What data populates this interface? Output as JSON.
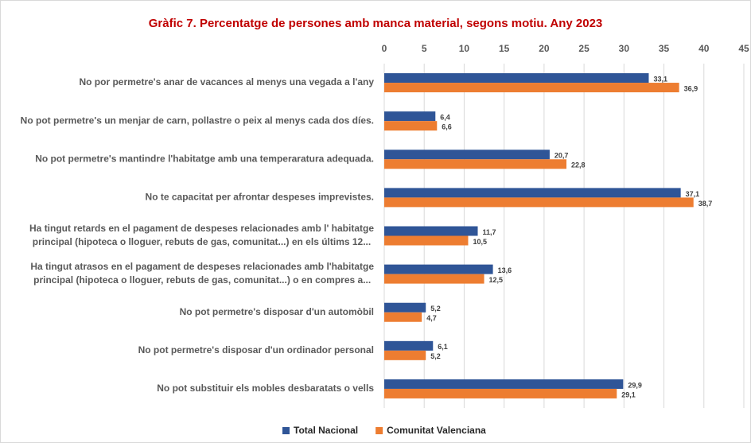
{
  "chart_data": {
    "type": "bar",
    "orientation": "horizontal",
    "title": "Gràfic 7. Percentatge de persones amb manca material, segons motiu. Any 2023",
    "categories": [
      "No por permetre's anar de vacances al menys una vegada a l'any",
      "No pot permetre's un menjar de carn, pollastre o peix al menys cada dos díes.",
      "No pot permetre's mantindre l'habitatge amb una temperaratura adequada.",
      "No te capacitat per afrontar despeses imprevistes.",
      "Ha tingut retards en el pagament de despeses relacionades amb l' habitatge principal (hipoteca o lloguer, rebuts de gas, comunitat...) en els últims 12...",
      "Ha tingut atrasos en el pagament de despeses relacionades amb l'habitatge principal (hipoteca o lloguer, rebuts de gas, comunitat...) o en compres a...",
      "No pot permetre's disposar d'un automòbil",
      "No pot permetre's disposar d'un ordinador personal",
      "No pot substituir els mobles desbaratats o vells"
    ],
    "series": [
      {
        "name": "Total Nacional",
        "color": "#2f5597",
        "values": [
          33.1,
          6.4,
          20.7,
          37.1,
          11.7,
          13.6,
          5.2,
          6.1,
          29.9
        ],
        "value_labels": [
          "33,1",
          "6,4",
          "20,7",
          "37,1",
          "11,7",
          "13,6",
          "5,2",
          "6,1",
          "29,9"
        ]
      },
      {
        "name": "Comunitat Valenciana",
        "color": "#ed7d31",
        "values": [
          36.9,
          6.6,
          22.8,
          38.7,
          10.5,
          12.5,
          4.7,
          5.2,
          29.1
        ],
        "value_labels": [
          "36,9",
          "6,6",
          "22,8",
          "38,7",
          "10,5",
          "12,5",
          "4,7",
          "5,2",
          "29,1"
        ]
      }
    ],
    "xlim": [
      0,
      45
    ],
    "xticks": [
      0,
      5,
      10,
      15,
      20,
      25,
      30,
      35,
      40,
      45
    ],
    "grid": true,
    "legend": "bottom"
  }
}
